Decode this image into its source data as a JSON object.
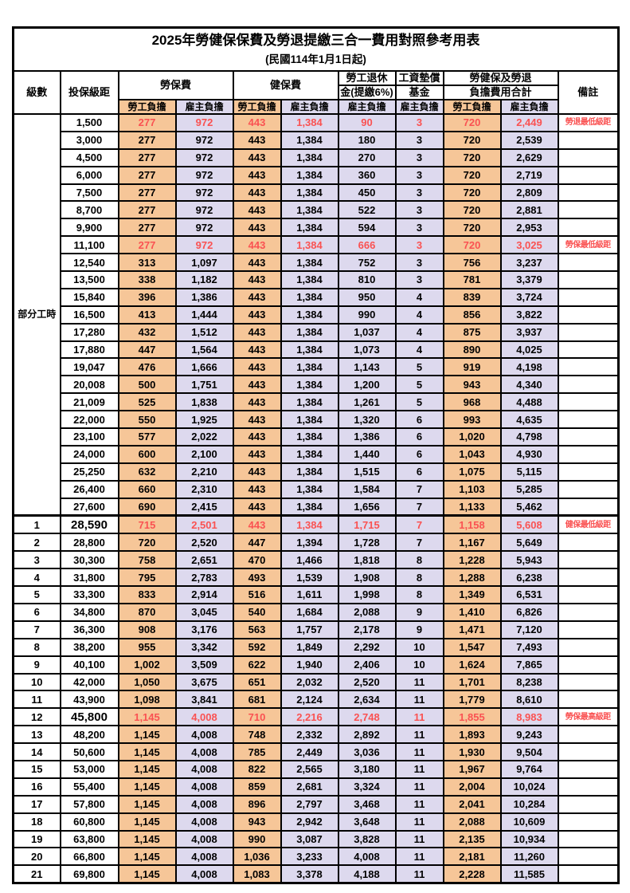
{
  "page": {
    "title": "2025年勞健保保費及勞退提繳三合一費用對照參考用表",
    "subtitle": "(民國114年1月1日起)"
  },
  "header": {
    "level": "級數",
    "bracket": "投保級距",
    "labor": "勞保費",
    "health": "健保費",
    "pension_line1": "勞工退休",
    "pension_line2": "金(提繳6%)",
    "wage_line1": "工資墊償",
    "wage_line2": "基金",
    "total_line1": "勞健保及勞退",
    "total_line2": "負擔費用合計",
    "remark": "備註",
    "employee": "勞工負擔",
    "employer": "雇主負擔"
  },
  "part_time": {
    "label": "部分工時",
    "rowspan": 23
  },
  "colors": {
    "employee_bg": "#F6C698",
    "employer_bg": "#DDD9EE",
    "highlight_text": "#FA5252",
    "border": "#000000"
  },
  "rows": [
    {
      "level": "",
      "bracket": "1,500",
      "values": [
        "277",
        "972",
        "443",
        "1,384",
        "90",
        "3",
        "720",
        "2,449"
      ],
      "remark": "勞退最低級距",
      "red": true,
      "bold": false
    },
    {
      "level": "",
      "bracket": "3,000",
      "values": [
        "277",
        "972",
        "443",
        "1,384",
        "180",
        "3",
        "720",
        "2,539"
      ],
      "remark": "",
      "red": false,
      "bold": false
    },
    {
      "level": "",
      "bracket": "4,500",
      "values": [
        "277",
        "972",
        "443",
        "1,384",
        "270",
        "3",
        "720",
        "2,629"
      ],
      "remark": "",
      "red": false,
      "bold": false
    },
    {
      "level": "",
      "bracket": "6,000",
      "values": [
        "277",
        "972",
        "443",
        "1,384",
        "360",
        "3",
        "720",
        "2,719"
      ],
      "remark": "",
      "red": false,
      "bold": false
    },
    {
      "level": "",
      "bracket": "7,500",
      "values": [
        "277",
        "972",
        "443",
        "1,384",
        "450",
        "3",
        "720",
        "2,809"
      ],
      "remark": "",
      "red": false,
      "bold": false
    },
    {
      "level": "",
      "bracket": "8,700",
      "values": [
        "277",
        "972",
        "443",
        "1,384",
        "522",
        "3",
        "720",
        "2,881"
      ],
      "remark": "",
      "red": false,
      "bold": false
    },
    {
      "level": "",
      "bracket": "9,900",
      "values": [
        "277",
        "972",
        "443",
        "1,384",
        "594",
        "3",
        "720",
        "2,953"
      ],
      "remark": "",
      "red": false,
      "bold": false
    },
    {
      "level": "",
      "bracket": "11,100",
      "values": [
        "277",
        "972",
        "443",
        "1,384",
        "666",
        "3",
        "720",
        "3,025"
      ],
      "remark": "勞保最低級距",
      "red": true,
      "bold": false
    },
    {
      "level": "",
      "bracket": "12,540",
      "values": [
        "313",
        "1,097",
        "443",
        "1,384",
        "752",
        "3",
        "756",
        "3,237"
      ],
      "remark": "",
      "red": false,
      "bold": false
    },
    {
      "level": "",
      "bracket": "13,500",
      "values": [
        "338",
        "1,182",
        "443",
        "1,384",
        "810",
        "3",
        "781",
        "3,379"
      ],
      "remark": "",
      "red": false,
      "bold": false
    },
    {
      "level": "",
      "bracket": "15,840",
      "values": [
        "396",
        "1,386",
        "443",
        "1,384",
        "950",
        "4",
        "839",
        "3,724"
      ],
      "remark": "",
      "red": false,
      "bold": false
    },
    {
      "level": "",
      "bracket": "16,500",
      "values": [
        "413",
        "1,444",
        "443",
        "1,384",
        "990",
        "4",
        "856",
        "3,822"
      ],
      "remark": "",
      "red": false,
      "bold": false
    },
    {
      "level": "",
      "bracket": "17,280",
      "values": [
        "432",
        "1,512",
        "443",
        "1,384",
        "1,037",
        "4",
        "875",
        "3,937"
      ],
      "remark": "",
      "red": false,
      "bold": false
    },
    {
      "level": "",
      "bracket": "17,880",
      "values": [
        "447",
        "1,564",
        "443",
        "1,384",
        "1,073",
        "4",
        "890",
        "4,025"
      ],
      "remark": "",
      "red": false,
      "bold": false
    },
    {
      "level": "",
      "bracket": "19,047",
      "values": [
        "476",
        "1,666",
        "443",
        "1,384",
        "1,143",
        "5",
        "919",
        "4,198"
      ],
      "remark": "",
      "red": false,
      "bold": false
    },
    {
      "level": "",
      "bracket": "20,008",
      "values": [
        "500",
        "1,751",
        "443",
        "1,384",
        "1,200",
        "5",
        "943",
        "4,340"
      ],
      "remark": "",
      "red": false,
      "bold": false
    },
    {
      "level": "",
      "bracket": "21,009",
      "values": [
        "525",
        "1,838",
        "443",
        "1,384",
        "1,261",
        "5",
        "968",
        "4,488"
      ],
      "remark": "",
      "red": false,
      "bold": false
    },
    {
      "level": "",
      "bracket": "22,000",
      "values": [
        "550",
        "1,925",
        "443",
        "1,384",
        "1,320",
        "6",
        "993",
        "4,635"
      ],
      "remark": "",
      "red": false,
      "bold": false
    },
    {
      "level": "",
      "bracket": "23,100",
      "values": [
        "577",
        "2,022",
        "443",
        "1,384",
        "1,386",
        "6",
        "1,020",
        "4,798"
      ],
      "remark": "",
      "red": false,
      "bold": false
    },
    {
      "level": "",
      "bracket": "24,000",
      "values": [
        "600",
        "2,100",
        "443",
        "1,384",
        "1,440",
        "6",
        "1,043",
        "4,930"
      ],
      "remark": "",
      "red": false,
      "bold": false
    },
    {
      "level": "",
      "bracket": "25,250",
      "values": [
        "632",
        "2,210",
        "443",
        "1,384",
        "1,515",
        "6",
        "1,075",
        "5,115"
      ],
      "remark": "",
      "red": false,
      "bold": false
    },
    {
      "level": "",
      "bracket": "26,400",
      "values": [
        "660",
        "2,310",
        "443",
        "1,384",
        "1,584",
        "7",
        "1,103",
        "5,285"
      ],
      "remark": "",
      "red": false,
      "bold": false
    },
    {
      "level": "",
      "bracket": "27,600",
      "values": [
        "690",
        "2,415",
        "443",
        "1,384",
        "1,656",
        "7",
        "1,133",
        "5,462"
      ],
      "remark": "",
      "red": false,
      "bold": false
    },
    {
      "level": "1",
      "bracket": "28,590",
      "values": [
        "715",
        "2,501",
        "443",
        "1,384",
        "1,715",
        "7",
        "1,158",
        "5,608"
      ],
      "remark": "健保最低級距",
      "red": true,
      "bold": true
    },
    {
      "level": "2",
      "bracket": "28,800",
      "values": [
        "720",
        "2,520",
        "447",
        "1,394",
        "1,728",
        "7",
        "1,167",
        "5,649"
      ],
      "remark": "",
      "red": false,
      "bold": false
    },
    {
      "level": "3",
      "bracket": "30,300",
      "values": [
        "758",
        "2,651",
        "470",
        "1,466",
        "1,818",
        "8",
        "1,228",
        "5,943"
      ],
      "remark": "",
      "red": false,
      "bold": false
    },
    {
      "level": "4",
      "bracket": "31,800",
      "values": [
        "795",
        "2,783",
        "493",
        "1,539",
        "1,908",
        "8",
        "1,288",
        "6,238"
      ],
      "remark": "",
      "red": false,
      "bold": false
    },
    {
      "level": "5",
      "bracket": "33,300",
      "values": [
        "833",
        "2,914",
        "516",
        "1,611",
        "1,998",
        "8",
        "1,349",
        "6,531"
      ],
      "remark": "",
      "red": false,
      "bold": false
    },
    {
      "level": "6",
      "bracket": "34,800",
      "values": [
        "870",
        "3,045",
        "540",
        "1,684",
        "2,088",
        "9",
        "1,410",
        "6,826"
      ],
      "remark": "",
      "red": false,
      "bold": false
    },
    {
      "level": "7",
      "bracket": "36,300",
      "values": [
        "908",
        "3,176",
        "563",
        "1,757",
        "2,178",
        "9",
        "1,471",
        "7,120"
      ],
      "remark": "",
      "red": false,
      "bold": false
    },
    {
      "level": "8",
      "bracket": "38,200",
      "values": [
        "955",
        "3,342",
        "592",
        "1,849",
        "2,292",
        "10",
        "1,547",
        "7,493"
      ],
      "remark": "",
      "red": false,
      "bold": false
    },
    {
      "level": "9",
      "bracket": "40,100",
      "values": [
        "1,002",
        "3,509",
        "622",
        "1,940",
        "2,406",
        "10",
        "1,624",
        "7,865"
      ],
      "remark": "",
      "red": false,
      "bold": false
    },
    {
      "level": "10",
      "bracket": "42,000",
      "values": [
        "1,050",
        "3,675",
        "651",
        "2,032",
        "2,520",
        "11",
        "1,701",
        "8,238"
      ],
      "remark": "",
      "red": false,
      "bold": false
    },
    {
      "level": "11",
      "bracket": "43,900",
      "values": [
        "1,098",
        "3,841",
        "681",
        "2,124",
        "2,634",
        "11",
        "1,779",
        "8,610"
      ],
      "remark": "",
      "red": false,
      "bold": false
    },
    {
      "level": "12",
      "bracket": "45,800",
      "values": [
        "1,145",
        "4,008",
        "710",
        "2,216",
        "2,748",
        "11",
        "1,855",
        "8,983"
      ],
      "remark": "勞保最高級距",
      "red": true,
      "bold": true
    },
    {
      "level": "13",
      "bracket": "48,200",
      "values": [
        "1,145",
        "4,008",
        "748",
        "2,332",
        "2,892",
        "11",
        "1,893",
        "9,243"
      ],
      "remark": "",
      "red": false,
      "bold": false
    },
    {
      "level": "14",
      "bracket": "50,600",
      "values": [
        "1,145",
        "4,008",
        "785",
        "2,449",
        "3,036",
        "11",
        "1,930",
        "9,504"
      ],
      "remark": "",
      "red": false,
      "bold": false
    },
    {
      "level": "15",
      "bracket": "53,000",
      "values": [
        "1,145",
        "4,008",
        "822",
        "2,565",
        "3,180",
        "11",
        "1,967",
        "9,764"
      ],
      "remark": "",
      "red": false,
      "bold": false
    },
    {
      "level": "16",
      "bracket": "55,400",
      "values": [
        "1,145",
        "4,008",
        "859",
        "2,681",
        "3,324",
        "11",
        "2,004",
        "10,024"
      ],
      "remark": "",
      "red": false,
      "bold": false
    },
    {
      "level": "17",
      "bracket": "57,800",
      "values": [
        "1,145",
        "4,008",
        "896",
        "2,797",
        "3,468",
        "11",
        "2,041",
        "10,284"
      ],
      "remark": "",
      "red": false,
      "bold": false
    },
    {
      "level": "18",
      "bracket": "60,800",
      "values": [
        "1,145",
        "4,008",
        "943",
        "2,942",
        "3,648",
        "11",
        "2,088",
        "10,609"
      ],
      "remark": "",
      "red": false,
      "bold": false
    },
    {
      "level": "19",
      "bracket": "63,800",
      "values": [
        "1,145",
        "4,008",
        "990",
        "3,087",
        "3,828",
        "11",
        "2,135",
        "10,934"
      ],
      "remark": "",
      "red": false,
      "bold": false
    },
    {
      "level": "20",
      "bracket": "66,800",
      "values": [
        "1,145",
        "4,008",
        "1,036",
        "3,233",
        "4,008",
        "11",
        "2,181",
        "11,260"
      ],
      "remark": "",
      "red": false,
      "bold": false
    },
    {
      "level": "21",
      "bracket": "69,800",
      "values": [
        "1,145",
        "4,008",
        "1,083",
        "3,378",
        "4,188",
        "11",
        "2,228",
        "11,585"
      ],
      "remark": "",
      "red": false,
      "bold": false
    }
  ]
}
